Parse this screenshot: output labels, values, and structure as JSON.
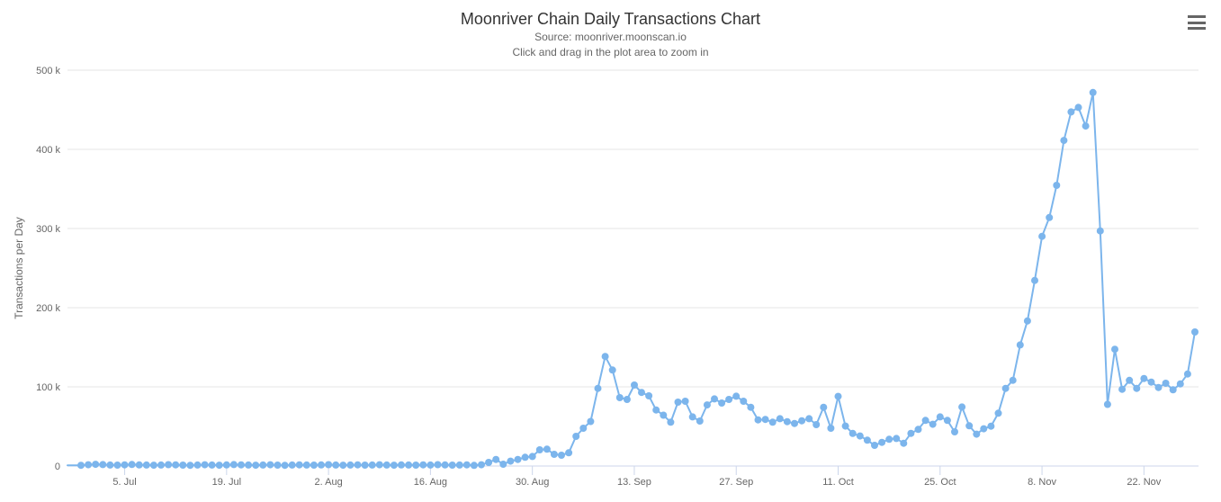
{
  "header": {
    "title": "Moonriver Chain Daily Transactions Chart",
    "subtitle_line1": "Source: moonriver.moonscan.io",
    "subtitle_line2": "Click and drag in the plot area to zoom in"
  },
  "context_menu": {
    "icon": "hamburger-menu-icon"
  },
  "colors": {
    "series": "#7cb5ec",
    "title_text": "#333333",
    "subtitle_text": "#666666",
    "axis_label_text": "#666666",
    "grid_line": "#e6e6e6",
    "axis_line": "#ccd6eb",
    "menu_icon": "#666666",
    "background": "#ffffff"
  },
  "chart_data": {
    "type": "line",
    "title": "Moonriver Chain Daily Transactions Chart",
    "subtitle": "Source: moonriver.moonscan.io — Click and drag in the plot area to zoom in",
    "xlabel": "",
    "ylabel": "Transactions per Day",
    "ylim": [
      0,
      500000
    ],
    "grid": true,
    "legend": false,
    "marker": "circle",
    "x_interval": "daily",
    "x_first_point": "29. Jun",
    "x_last_point": "29. Nov",
    "y_ticks": [
      {
        "value": 0,
        "label": "0"
      },
      {
        "value": 100000,
        "label": "100 k"
      },
      {
        "value": 200000,
        "label": "200 k"
      },
      {
        "value": 300000,
        "label": "300 k"
      },
      {
        "value": 400000,
        "label": "400 k"
      },
      {
        "value": 500000,
        "label": "500 k"
      }
    ],
    "x_ticks": [
      {
        "index": 6,
        "label": "5. Jul"
      },
      {
        "index": 20,
        "label": "19. Jul"
      },
      {
        "index": 34,
        "label": "2. Aug"
      },
      {
        "index": 48,
        "label": "16. Aug"
      },
      {
        "index": 62,
        "label": "30. Aug"
      },
      {
        "index": 76,
        "label": "13. Sep"
      },
      {
        "index": 90,
        "label": "27. Sep"
      },
      {
        "index": 104,
        "label": "11. Oct"
      },
      {
        "index": 118,
        "label": "25. Oct"
      },
      {
        "index": 132,
        "label": "8. Nov"
      },
      {
        "index": 146,
        "label": "22. Nov"
      }
    ],
    "series": [
      {
        "name": "Transactions per Day",
        "values": [
          900,
          1600,
          2200,
          1800,
          1300,
          1100,
          1500,
          1900,
          1400,
          1200,
          1000,
          1300,
          1700,
          1500,
          1100,
          900,
          1200,
          1600,
          1300,
          1000,
          1400,
          1800,
          1500,
          1200,
          1000,
          1300,
          1600,
          1100,
          900,
          1200,
          1500,
          1300,
          1100,
          1400,
          1700,
          1300,
          1000,
          1200,
          1500,
          1100,
          1300,
          1600,
          1200,
          1000,
          1400,
          1300,
          1100,
          1500,
          1200,
          1700,
          1400,
          1100,
          1300,
          1500,
          800,
          1600,
          4500,
          8300,
          2300,
          6100,
          8300,
          11000,
          12100,
          20500,
          21200,
          14800,
          13600,
          16700,
          37500,
          47700,
          56200,
          98100,
          138400,
          121200,
          86400,
          84100,
          102300,
          93000,
          88600,
          70800,
          64200,
          55300,
          80700,
          81800,
          62100,
          56800,
          77200,
          84800,
          79500,
          84100,
          88200,
          81800,
          74200,
          58300,
          58900,
          55300,
          59800,
          56000,
          53800,
          57200,
          59800,
          52300,
          74200,
          47700,
          87900,
          50400,
          41100,
          37900,
          32600,
          26100,
          29900,
          33700,
          34800,
          28800,
          41300,
          46200,
          57600,
          52700,
          62100,
          57600,
          43200,
          74600,
          50800,
          40200,
          47000,
          50300,
          66700,
          98100,
          108300,
          153000,
          183300,
          234400,
          290100,
          313900,
          354500,
          411300,
          447300,
          453000,
          429400,
          471800,
          296900,
          77800,
          147500,
          96900,
          108200,
          98100,
          110600,
          106000,
          99200,
          104500,
          96200,
          103700,
          116200,
          169300
        ]
      }
    ]
  }
}
